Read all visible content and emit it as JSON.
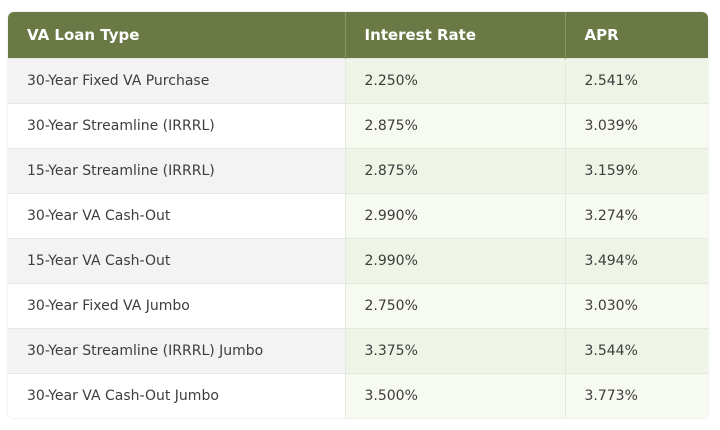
{
  "table": {
    "headers": [
      "VA Loan Type",
      "Interest Rate",
      "APR"
    ],
    "rows": [
      [
        "30-Year Fixed VA Purchase",
        "2.250%",
        "2.541%"
      ],
      [
        "30-Year Streamline (IRRRL)",
        "2.875%",
        "3.039%"
      ],
      [
        "15-Year Streamline (IRRRL)",
        "2.875%",
        "3.159%"
      ],
      [
        "30-Year VA Cash-Out",
        "2.990%",
        "3.274%"
      ],
      [
        "15-Year VA Cash-Out",
        "2.990%",
        "3.494%"
      ],
      [
        "30-Year Fixed VA Jumbo",
        "2.750%",
        "3.030%"
      ],
      [
        "30-Year Streamline (IRRRL) Jumbo",
        "3.375%",
        "3.544%"
      ],
      [
        "30-Year VA Cash-Out Jumbo",
        "3.500%",
        "3.773%"
      ]
    ]
  }
}
